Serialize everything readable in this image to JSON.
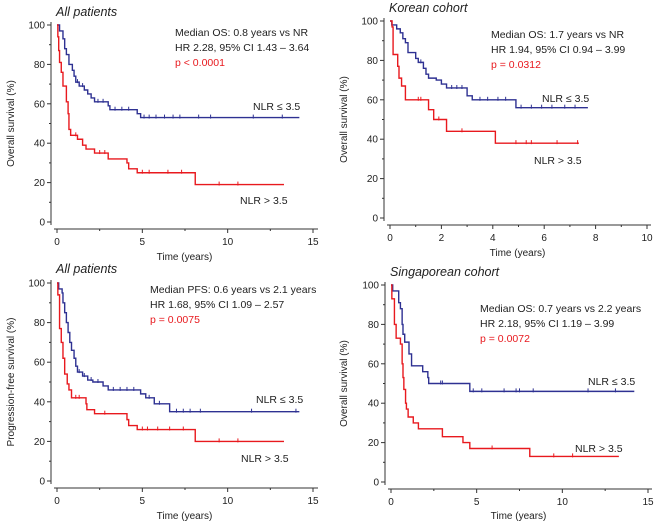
{
  "chart_data": [
    {
      "type": "line",
      "subtype": "kaplan-meier",
      "title": "All patients",
      "xlabel": "Time (years)",
      "ylabel": "Overall survival (%)",
      "xlim": [
        0,
        15
      ],
      "ylim": [
        0,
        100
      ],
      "xticks": [
        "0",
        "5",
        "10",
        "15"
      ],
      "yticks": [
        "0",
        "20",
        "40",
        "60",
        "80",
        "100"
      ],
      "annotation": [
        "Median OS: 0.8 years vs NR",
        "HR 2.28, 95% CI 1.43 – 3.64",
        "p < 0.0001"
      ],
      "series": [
        {
          "name": "NLR ≤ 3.5",
          "color": "#2e3192",
          "end": 14.2,
          "steps": [
            [
              0,
              100
            ],
            [
              0.15,
              97
            ],
            [
              0.35,
              93
            ],
            [
              0.45,
              88
            ],
            [
              0.55,
              85
            ],
            [
              0.7,
              80
            ],
            [
              0.9,
              77
            ],
            [
              1.0,
              74
            ],
            [
              1.1,
              71
            ],
            [
              1.3,
              69
            ],
            [
              1.6,
              67
            ],
            [
              1.8,
              65
            ],
            [
              2.0,
              63
            ],
            [
              2.2,
              61
            ],
            [
              3.0,
              59
            ],
            [
              3.1,
              57
            ],
            [
              4.7,
              55
            ],
            [
              4.9,
              53
            ]
          ],
          "censored": [
            1.2,
            1.5,
            2.4,
            2.7,
            3.4,
            3.8,
            4.2,
            5.1,
            5.4,
            5.8,
            6.3,
            6.8,
            7.2,
            8.3,
            9.0,
            11.5,
            13.2
          ]
        },
        {
          "name": "NLR > 3.5",
          "color": "#e8191e",
          "end": 13.3,
          "steps": [
            [
              0,
              100
            ],
            [
              0.05,
              94
            ],
            [
              0.1,
              87
            ],
            [
              0.15,
              81
            ],
            [
              0.25,
              76
            ],
            [
              0.35,
              69
            ],
            [
              0.55,
              61
            ],
            [
              0.65,
              55
            ],
            [
              0.7,
              47
            ],
            [
              0.8,
              44
            ],
            [
              1.2,
              42
            ],
            [
              1.5,
              39
            ],
            [
              1.7,
              37
            ],
            [
              2.2,
              35
            ],
            [
              3.0,
              32
            ],
            [
              4.1,
              30
            ],
            [
              4.2,
              27
            ],
            [
              4.7,
              25
            ],
            [
              8.1,
              19
            ]
          ],
          "censored": [
            1.1,
            2.5,
            2.8,
            5.0,
            5.4,
            6.5,
            7.3,
            9.5,
            10.6
          ]
        }
      ]
    },
    {
      "type": "line",
      "subtype": "kaplan-meier",
      "title": "Korean cohort",
      "xlabel": "Time (years)",
      "ylabel": "Overall survival (%)",
      "xlim": [
        0,
        10
      ],
      "ylim": [
        0,
        100
      ],
      "xticks": [
        "0",
        "2",
        "4",
        "6",
        "8",
        "10"
      ],
      "yticks": [
        "0",
        "20",
        "40",
        "60",
        "80",
        "100"
      ],
      "annotation": [
        "Median OS: 1.7 years vs NR",
        "HR 1.94, 95% CI 0.94 – 3.99",
        "p = 0.0312"
      ],
      "series": [
        {
          "name": "NLR ≤ 3.5",
          "color": "#2e3192",
          "end": 7.7,
          "steps": [
            [
              0,
              100
            ],
            [
              0.07,
              98
            ],
            [
              0.26,
              96
            ],
            [
              0.4,
              94
            ],
            [
              0.5,
              91
            ],
            [
              0.6,
              89
            ],
            [
              0.7,
              84
            ],
            [
              1.0,
              81
            ],
            [
              1.1,
              79
            ],
            [
              1.3,
              76
            ],
            [
              1.4,
              73
            ],
            [
              1.5,
              71
            ],
            [
              1.8,
              70
            ],
            [
              2.0,
              68
            ],
            [
              2.2,
              66
            ],
            [
              3.0,
              62
            ],
            [
              3.2,
              60
            ],
            [
              4.9,
              56
            ]
          ],
          "censored": [
            1.2,
            2.4,
            2.6,
            2.8,
            3.5,
            3.8,
            4.2,
            4.5,
            5.1,
            5.5,
            5.9,
            6.3,
            6.8,
            7.2
          ]
        },
        {
          "name": "NLR > 3.5",
          "color": "#e8191e",
          "end": 7.35,
          "steps": [
            [
              0,
              100
            ],
            [
              0.08,
              97
            ],
            [
              0.12,
              83
            ],
            [
              0.3,
              77
            ],
            [
              0.35,
              71
            ],
            [
              0.45,
              67
            ],
            [
              0.6,
              60
            ],
            [
              1.5,
              55
            ],
            [
              1.7,
              50
            ],
            [
              2.2,
              44
            ],
            [
              4.1,
              38
            ]
          ],
          "censored": [
            1.1,
            1.2,
            1.9,
            2.8,
            4.9,
            5.3,
            5.5,
            6.5,
            7.3
          ]
        }
      ]
    },
    {
      "type": "line",
      "subtype": "kaplan-meier",
      "title": "All patients",
      "xlabel": "Time (years)",
      "ylabel": "Progression-free survival (%)",
      "xlim": [
        0,
        15
      ],
      "ylim": [
        0,
        100
      ],
      "xticks": [
        "0",
        "5",
        "10",
        "15"
      ],
      "yticks": [
        "0",
        "20",
        "40",
        "60",
        "80",
        "100"
      ],
      "annotation": [
        "Median PFS: 0.6 years vs 2.1 years",
        "HR 1.68, 95% CI 1.09 – 2.57",
        "p = 0.0075"
      ],
      "series": [
        {
          "name": "NLR ≤ 3.5",
          "color": "#2e3192",
          "end": 14.2,
          "steps": [
            [
              0,
              100
            ],
            [
              0.1,
              97
            ],
            [
              0.3,
              95
            ],
            [
              0.35,
              90
            ],
            [
              0.45,
              85
            ],
            [
              0.55,
              80
            ],
            [
              0.65,
              75
            ],
            [
              0.75,
              70
            ],
            [
              0.85,
              66
            ],
            [
              1.0,
              62
            ],
            [
              1.1,
              58
            ],
            [
              1.2,
              55
            ],
            [
              1.5,
              53
            ],
            [
              1.8,
              51
            ],
            [
              2.1,
              50
            ],
            [
              2.7,
              48
            ],
            [
              3.0,
              46
            ],
            [
              4.9,
              44
            ],
            [
              5.2,
              42
            ],
            [
              5.7,
              39
            ],
            [
              6.6,
              35
            ]
          ],
          "censored": [
            1.3,
            1.6,
            2.0,
            2.4,
            3.3,
            3.7,
            4.1,
            4.5,
            5.4,
            6.0,
            7.0,
            7.4,
            7.8,
            8.4,
            11.4,
            14.0
          ]
        },
        {
          "name": "NLR > 3.5",
          "color": "#e8191e",
          "end": 13.3,
          "steps": [
            [
              0,
              100
            ],
            [
              0.05,
              94
            ],
            [
              0.15,
              77
            ],
            [
              0.25,
              70
            ],
            [
              0.35,
              62
            ],
            [
              0.45,
              54
            ],
            [
              0.6,
              49
            ],
            [
              0.7,
              46
            ],
            [
              0.85,
              42
            ],
            [
              1.7,
              39
            ],
            [
              1.75,
              36
            ],
            [
              2.2,
              34
            ],
            [
              4.1,
              31
            ],
            [
              4.2,
              28
            ],
            [
              4.7,
              26
            ],
            [
              8.1,
              20
            ]
          ],
          "censored": [
            1.1,
            1.3,
            2.8,
            5.0,
            5.3,
            5.9,
            6.6,
            7.4,
            9.5,
            10.6
          ]
        }
      ]
    },
    {
      "type": "line",
      "subtype": "kaplan-meier",
      "title": "Singaporean cohort",
      "xlabel": "Time (years)",
      "ylabel": "Overall survival (%)",
      "xlim": [
        0,
        15
      ],
      "ylim": [
        0,
        100
      ],
      "xticks": [
        "0",
        "5",
        "10",
        "15"
      ],
      "yticks": [
        "0",
        "20",
        "40",
        "60",
        "80",
        "100"
      ],
      "annotation": [
        "Median OS: 0.7 years vs 2.2 years",
        "HR 2.18, 95% CI 1.19 – 3.99",
        "p = 0.0072"
      ],
      "series": [
        {
          "name": "NLR ≤ 3.5",
          "color": "#2e3192",
          "end": 14.2,
          "steps": [
            [
              0,
              100
            ],
            [
              0.1,
              97
            ],
            [
              0.45,
              91
            ],
            [
              0.55,
              88
            ],
            [
              0.65,
              80
            ],
            [
              0.7,
              75
            ],
            [
              0.8,
              71
            ],
            [
              1.05,
              65
            ],
            [
              1.2,
              59
            ],
            [
              1.85,
              56
            ],
            [
              2.15,
              53
            ],
            [
              2.2,
              50
            ],
            [
              4.6,
              46
            ]
          ],
          "censored": [
            2.9,
            3.0,
            4.8,
            5.3,
            6.6,
            7.3,
            7.5,
            8.3,
            11.5,
            13.1
          ]
        },
        {
          "name": "NLR > 3.5",
          "color": "#e8191e",
          "end": 13.3,
          "steps": [
            [
              0,
              100
            ],
            [
              0.05,
              93
            ],
            [
              0.2,
              80
            ],
            [
              0.3,
              73
            ],
            [
              0.55,
              70
            ],
            [
              0.65,
              60
            ],
            [
              0.7,
              53
            ],
            [
              0.75,
              47
            ],
            [
              0.85,
              40
            ],
            [
              0.9,
              37
            ],
            [
              1.0,
              33
            ],
            [
              1.3,
              30
            ],
            [
              1.6,
              27
            ],
            [
              3.0,
              23
            ],
            [
              4.2,
              20
            ],
            [
              4.6,
              17
            ],
            [
              8.1,
              13
            ]
          ],
          "censored": [
            5.9,
            9.5,
            10.6
          ]
        }
      ]
    }
  ]
}
